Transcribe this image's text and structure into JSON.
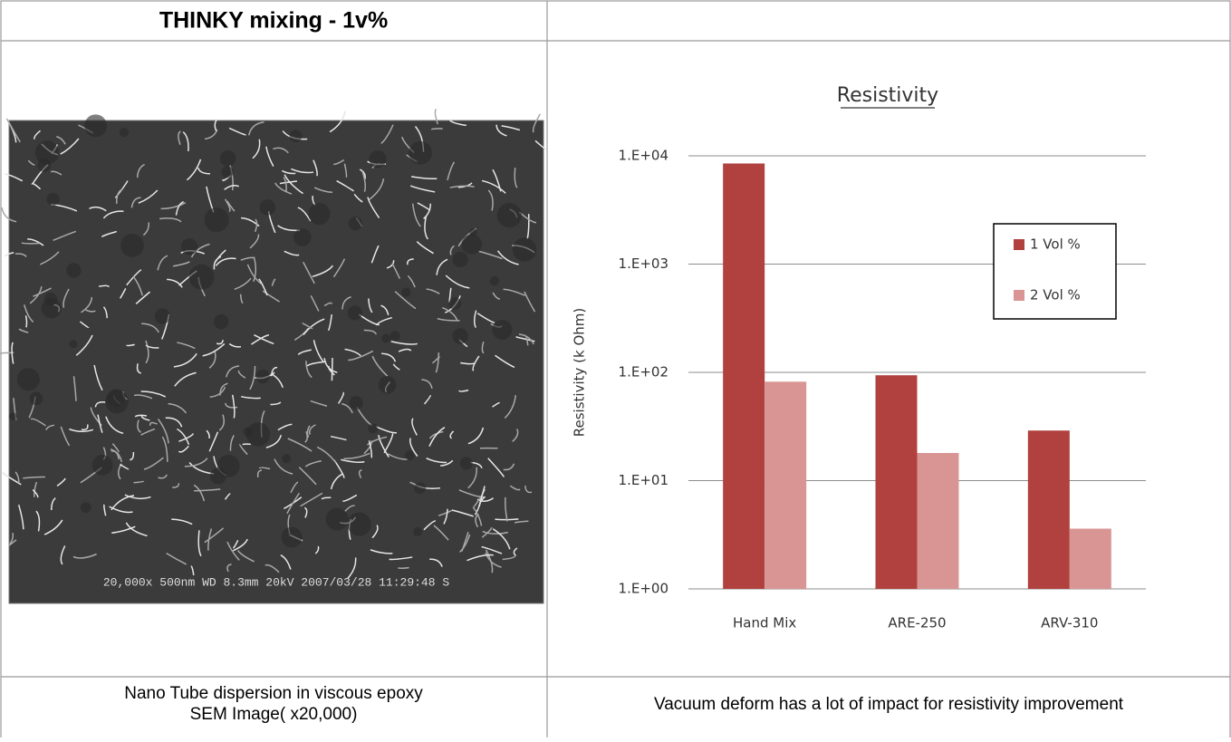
{
  "header": {
    "title": "THINKY mixing  - 1v%"
  },
  "image": {
    "overlay_text": "20,000x 500nm WD 8.3mm 20kV 2007/03/28 11:29:48 S"
  },
  "chart_data": {
    "type": "bar",
    "title": "Resistivity",
    "y_label": "Resistivity (k Ohm)",
    "categories": [
      "Hand Mix",
      "ARE-250",
      "ARV-310"
    ],
    "series": [
      {
        "name": "1 Vol %",
        "color": "#b0413e",
        "values": [
          8500,
          94,
          29
        ]
      },
      {
        "name": "2 Vol %",
        "color": "#d99594",
        "values": [
          82,
          18,
          3.6
        ]
      }
    ],
    "log_y": true,
    "ylim": [
      1,
      10000
    ],
    "yticks": [
      {
        "value": 1,
        "label": "1.E+00"
      },
      {
        "value": 10,
        "label": "1.E+01"
      },
      {
        "value": 100,
        "label": "1.E+02"
      },
      {
        "value": 1000,
        "label": "1.E+03"
      },
      {
        "value": 10000,
        "label": "1.E+04"
      }
    ],
    "grid": true,
    "legend": "right"
  },
  "captions": {
    "left": [
      "Nano Tube dispersion in viscous epoxy",
      "SEM Image( x20,000)"
    ],
    "right": "Vacuum deform has a lot of impact for resistivity improvement"
  }
}
